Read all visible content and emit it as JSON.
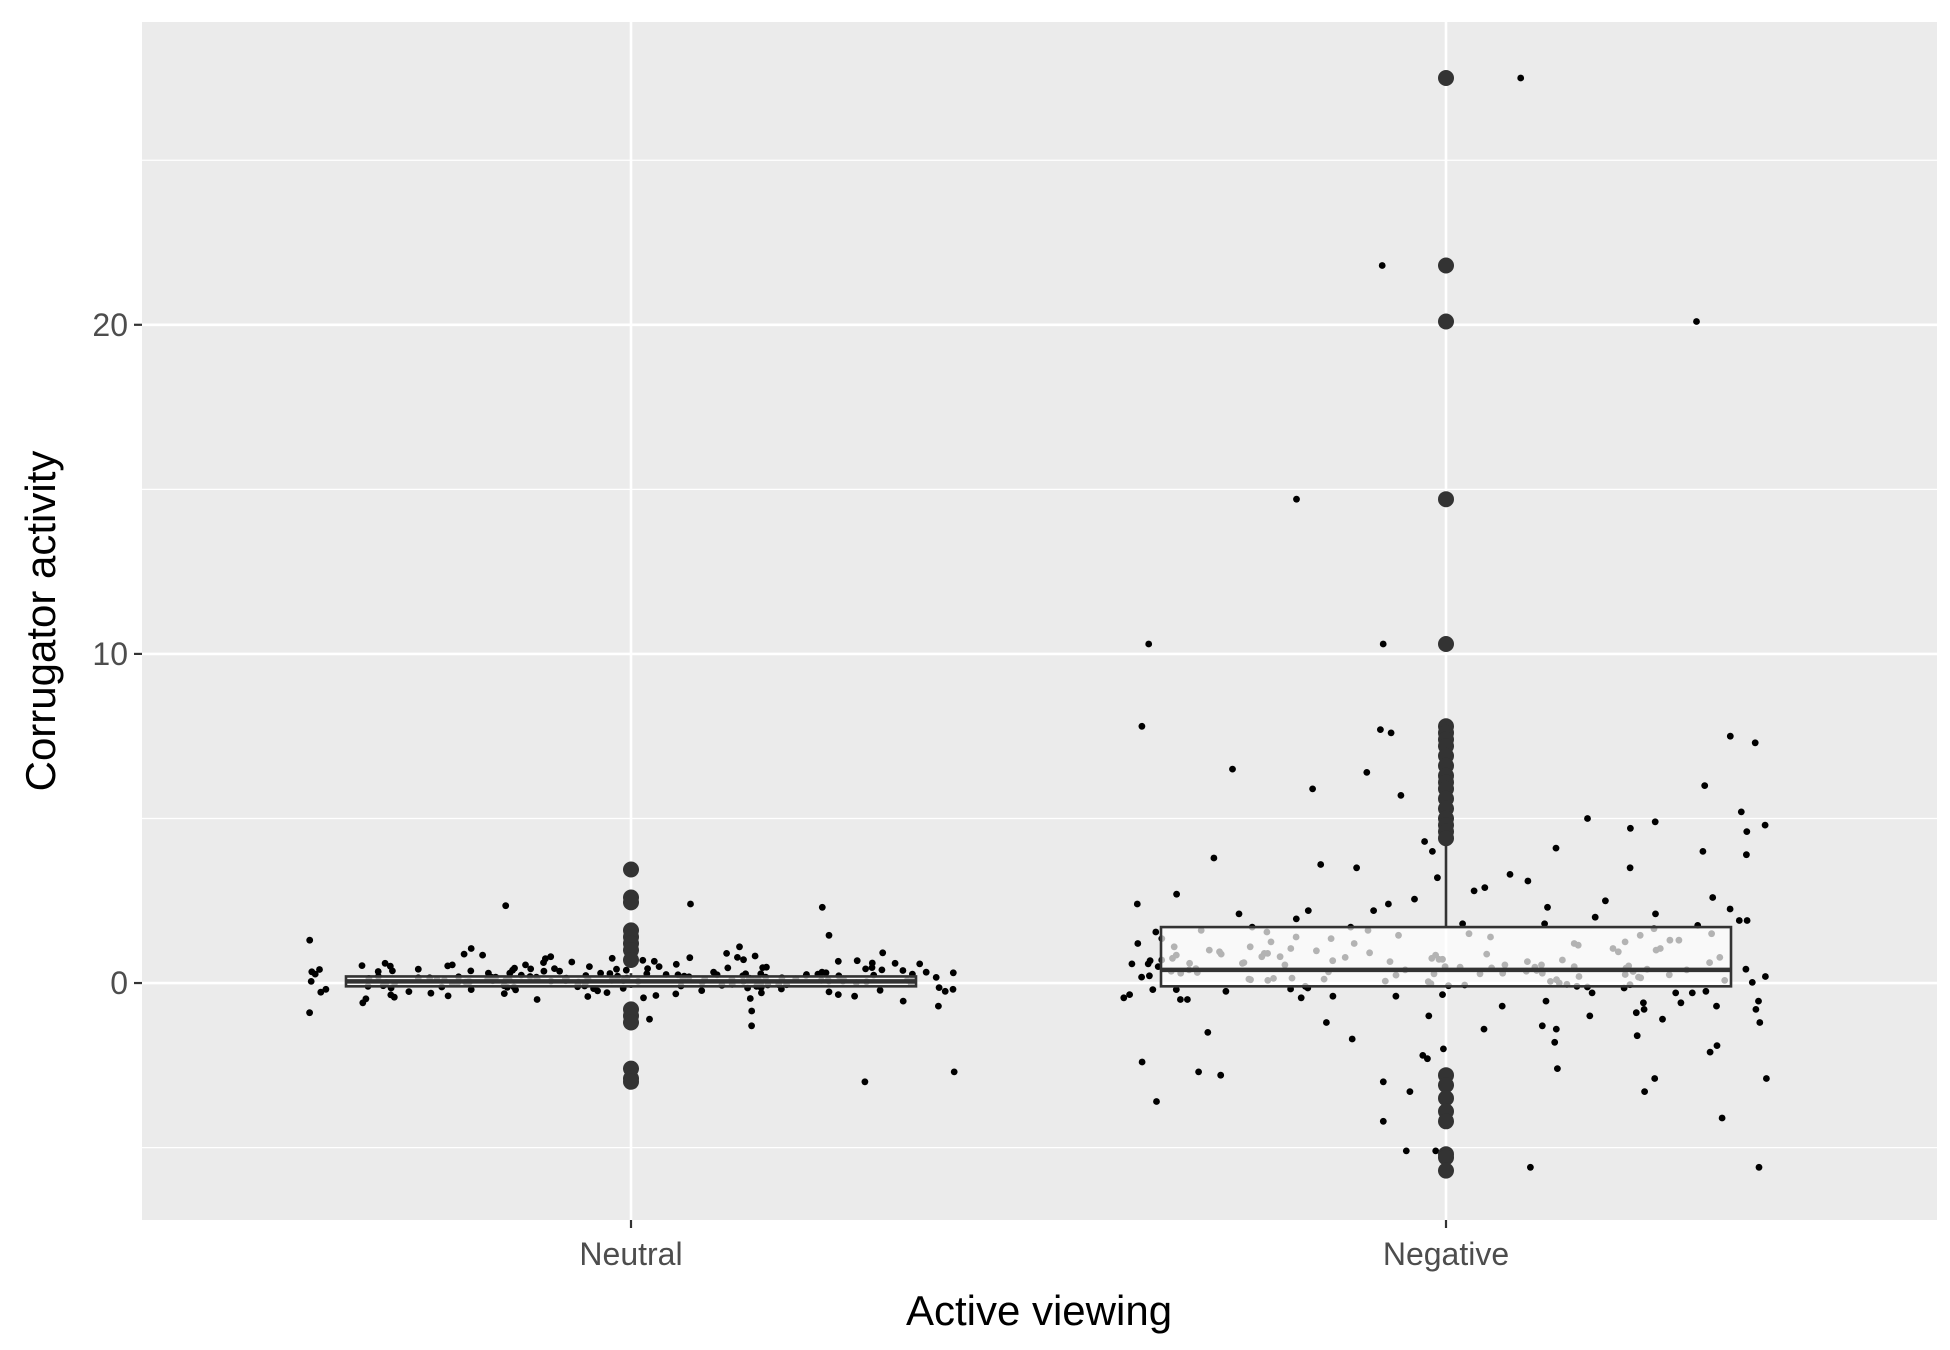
{
  "chart_data": {
    "type": "box",
    "title": "",
    "xlabel": "Active viewing",
    "ylabel": "Corrugator activity",
    "ylim": [
      -7.2,
      29.2
    ],
    "y_ticks": [
      0,
      10,
      20
    ],
    "y_tick_labels": [
      "0",
      "10",
      "20"
    ],
    "grid": true,
    "legend": "none",
    "colors": {
      "panel_background": "#ebebeb",
      "grid": "#ffffff",
      "box_fill": "#ffffff",
      "box_line": "#333333",
      "points": "#000000",
      "outliers": "#333333"
    },
    "categories": [
      "Neutral",
      "Negative"
    ],
    "boxes": [
      {
        "category": "Neutral",
        "min": -0.15,
        "q1": -0.1,
        "median": 0.05,
        "q3": 0.2,
        "max": 0.3,
        "outliers": [
          3.45,
          2.6,
          2.45,
          1.6,
          1.4,
          1.2,
          1.0,
          0.7,
          -0.8,
          -1.0,
          -1.2,
          -2.6,
          -2.9,
          -3.0
        ]
      },
      {
        "category": "Negative",
        "min": -0.1,
        "q1": -0.1,
        "median": 0.4,
        "q3": 1.7,
        "max": 4.2,
        "outliers": [
          27.5,
          21.8,
          20.1,
          14.7,
          10.3,
          7.8,
          7.6,
          7.4,
          7.2,
          6.9,
          6.6,
          6.3,
          6.1,
          5.9,
          5.6,
          5.3,
          5.0,
          4.8,
          4.6,
          4.4,
          -2.8,
          -3.1,
          -3.5,
          -3.9,
          -4.2,
          -5.2,
          -5.3,
          -5.7
        ]
      }
    ],
    "jitter_points": [
      {
        "category": "Neutral",
        "y": [
          0.12,
          -0.08,
          0.25,
          0.31,
          -0.15,
          0.05,
          0.42,
          -0.22,
          0.18,
          0.09,
          -0.05,
          0.55,
          0.33,
          -0.31,
          0.14,
          0.02,
          -0.12,
          0.27,
          0.61,
          -0.4,
          0.2,
          0.08,
          -0.18,
          0.36,
          0.11,
          0.74,
          -0.55,
          0.47,
          0.03,
          -0.09,
          0.22,
          0.16,
          -0.26,
          0.39,
          0.06,
          0.95,
          -0.7,
          0.29,
          0.13,
          -0.02,
          0.5,
          0.24,
          -0.35,
          0.1,
          0.66,
          0.01,
          -0.14,
          0.35,
          0.19,
          -0.48,
          0.82,
          0.07,
          0.28,
          -0.2,
          0.44,
          0.15,
          -0.06,
          0.58,
          0.23,
          -0.28,
          0.04,
          0.37,
          1.1,
          -0.9,
          0.17,
          0.3,
          -0.11,
          0.52,
          0.09,
          0.21,
          -0.38,
          0.68,
          0.12,
          -0.03,
          0.41,
          0.26,
          -0.24,
          0.05,
          0.78,
          0.18,
          -0.16,
          0.33,
          0.1,
          -0.45,
          0.6,
          0.02,
          0.27,
          -0.07,
          0.46,
          0.14,
          1.45,
          -1.3,
          0.2,
          0.08,
          -0.19,
          0.39,
          0.16,
          -0.33,
          0.71,
          0.04,
          0.25,
          -0.1,
          0.53,
          0.11,
          -0.6,
          0.88,
          0.3,
          0.06,
          -0.13,
          0.43,
          0.19,
          -0.27,
          0.64,
          0.01,
          0.34,
          -0.21,
          0.48,
          0.13,
          2.3,
          -2.7,
          2.4,
          -3.0,
          2.35,
          1.3,
          1.05,
          -1.1,
          0.9,
          -0.85,
          0.22,
          0.07,
          -0.04,
          0.38,
          0.15,
          -0.36,
          0.57,
          0.09,
          0.28,
          -0.17,
          0.45,
          0.12,
          -0.5,
          0.8,
          0.03,
          0.24,
          -0.08,
          0.5,
          0.17,
          -0.3,
          0.69,
          0.06,
          0.31,
          -0.12,
          0.42,
          0.1,
          -0.43,
          0.92,
          0.2,
          0.05,
          -0.23,
          0.36,
          0.14,
          -0.15,
          0.6,
          0.02,
          0.26,
          -0.06,
          0.47,
          0.18,
          -0.39,
          0.75,
          0.08,
          0.3,
          -0.1,
          0.4,
          0.11,
          -0.25,
          0.55,
          0.04,
          0.21,
          -0.14,
          0.37,
          0.16,
          -0.32,
          0.66,
          0.07,
          0.28,
          -0.05,
          0.44,
          0.13,
          -0.47,
          0.85,
          0.0,
          0.23,
          -0.19,
          0.51,
          0.15,
          -0.29,
          0.62,
          0.05,
          0.33,
          -0.09,
          0.43,
          0.12,
          -0.41,
          0.77,
          0.09,
          0.27,
          -0.03
        ]
      },
      {
        "category": "Negative",
        "y": [
          27.5,
          21.8,
          20.1,
          14.7,
          10.3,
          10.3,
          7.7,
          7.5,
          7.3,
          7.8,
          7.6,
          6.4,
          6.5,
          6.0,
          5.9,
          5.2,
          5.0,
          4.8,
          4.7,
          4.3,
          4.1,
          4.0,
          3.6,
          3.5,
          3.3,
          3.1,
          2.9,
          2.7,
          2.6,
          2.5,
          2.4,
          2.3,
          2.2,
          2.1,
          2.0,
          1.9,
          1.8,
          1.75,
          1.7,
          1.6,
          1.55,
          1.5,
          1.45,
          1.4,
          1.35,
          1.3,
          1.25,
          1.2,
          1.15,
          1.1,
          1.05,
          1.0,
          0.95,
          0.9,
          0.88,
          0.85,
          0.8,
          0.78,
          0.75,
          0.72,
          0.7,
          0.68,
          0.65,
          0.62,
          0.6,
          0.58,
          0.55,
          0.52,
          0.5,
          0.48,
          0.46,
          0.44,
          0.42,
          0.4,
          0.38,
          0.36,
          0.34,
          0.32,
          0.3,
          0.28,
          0.26,
          0.24,
          0.22,
          0.2,
          0.18,
          0.16,
          0.14,
          0.12,
          0.1,
          0.08,
          0.06,
          0.04,
          0.02,
          0.0,
          -0.02,
          -0.04,
          -0.06,
          -0.08,
          -0.1,
          -0.12,
          -0.15,
          -0.18,
          -0.2,
          -0.25,
          -0.3,
          -0.35,
          -0.4,
          -0.45,
          -0.5,
          -0.55,
          -0.6,
          -0.7,
          -0.8,
          -0.9,
          -1.0,
          -1.1,
          -1.2,
          -1.3,
          -1.4,
          -1.5,
          -1.6,
          -1.7,
          -1.8,
          -2.0,
          -2.1,
          -2.2,
          -2.4,
          -2.6,
          -2.7,
          -2.8,
          -2.9,
          -3.0,
          -3.3,
          -3.6,
          -4.1,
          -5.1,
          -5.6,
          -5.6,
          0.35,
          0.45,
          1.6,
          0.9,
          -0.3,
          0.5,
          1.2,
          0.25,
          0.65,
          -0.6,
          1.8,
          0.15,
          0.95,
          -0.2,
          0.55,
          1.4,
          0.05,
          0.75,
          -0.45,
          1.05,
          0.3,
          2.1,
          0.6,
          -0.1,
          1.3,
          0.4,
          0.85,
          -0.7,
          1.55,
          0.2,
          0.7,
          2.4,
          -0.35,
          1.0,
          0.1,
          0.5,
          1.65,
          -0.55,
          0.8,
          0.28,
          1.25,
          -0.15,
          0.58,
          1.95,
          0.12,
          0.92,
          -0.4,
          1.45,
          0.36,
          0.68,
          -0.25,
          1.1,
          0.48,
          2.25,
          -0.8,
          0.62,
          1.35,
          0.08,
          0.78,
          -0.05,
          1.7,
          0.42,
          0.98,
          -0.5,
          1.2,
          0.3,
          0.72,
          2.55,
          -1.0,
          0.55,
          1.5,
          0.18,
          0.88,
          -0.3,
          1.05,
          0.4,
          3.5,
          4.0,
          3.8,
          2.8,
          -1.2,
          -2.3,
          -3.3,
          -5.1,
          -4.2,
          -2.9,
          4.6,
          3.2,
          2.2,
          5.7,
          4.9,
          -1.4,
          -1.9,
          1.9,
          3.9
        ]
      }
    ]
  }
}
